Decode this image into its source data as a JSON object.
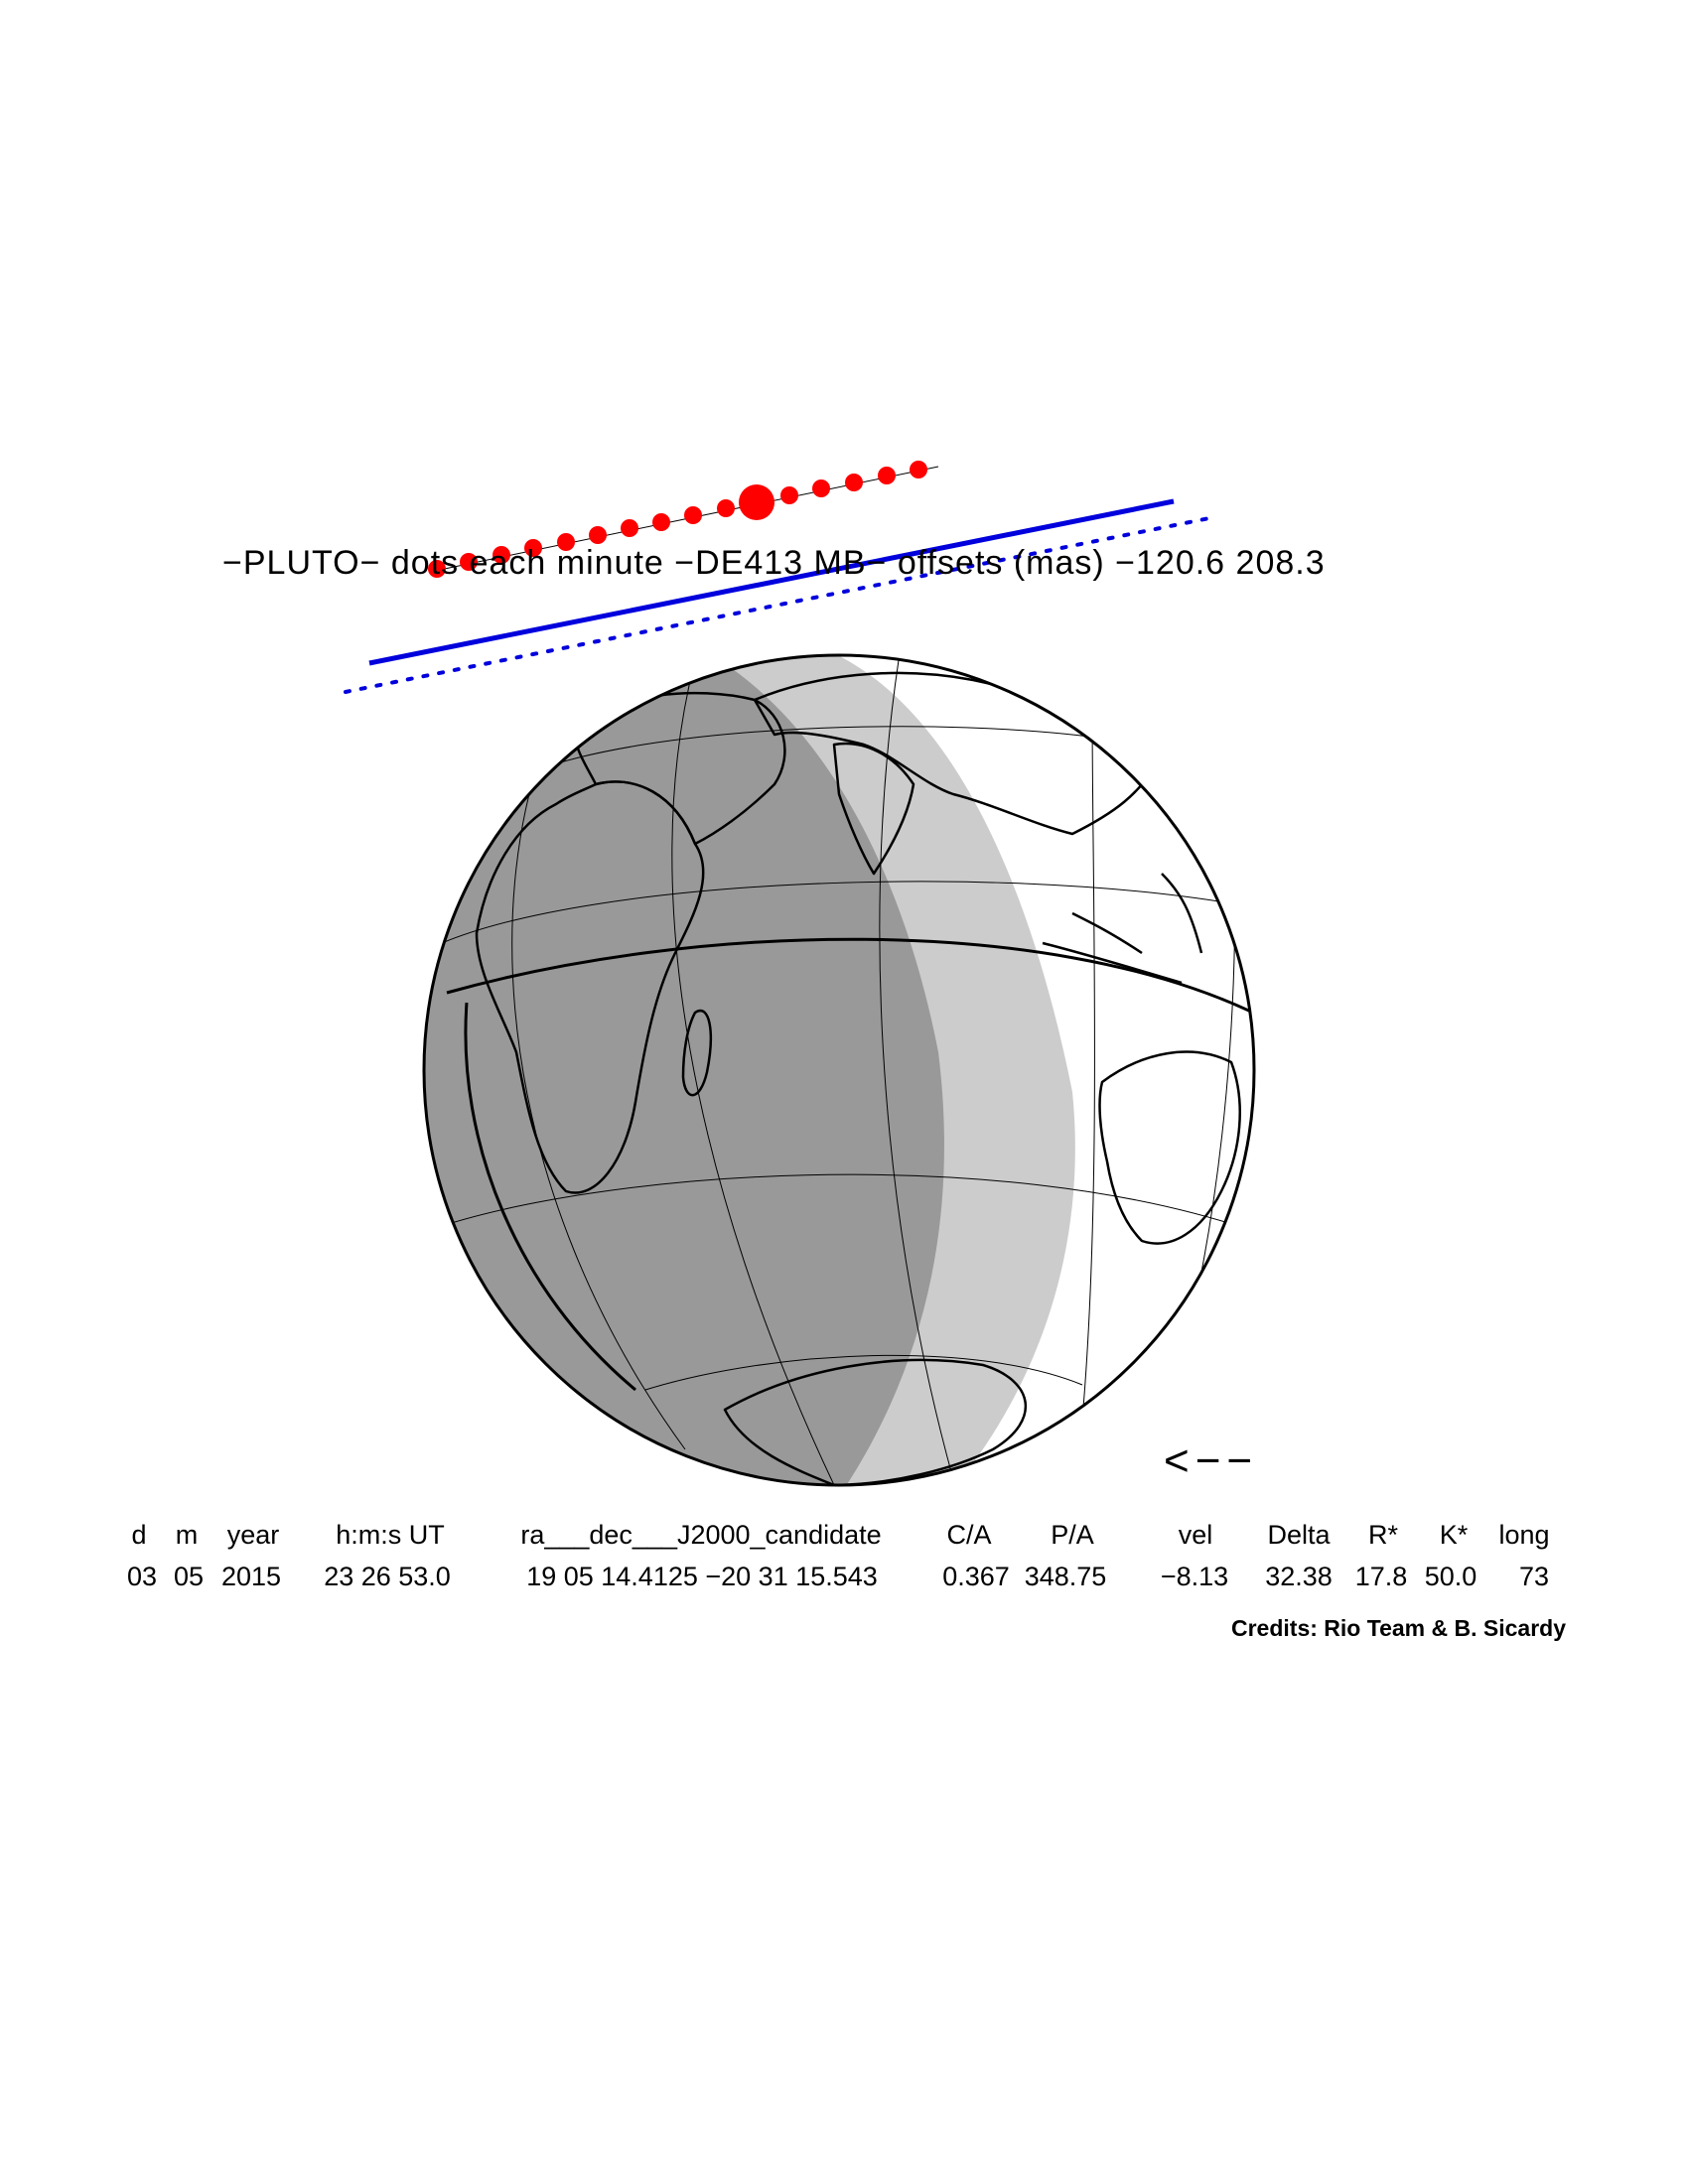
{
  "title": "−PLUTO−  dots each minute  −DE413 MB−  offsets (mas)  −120.6   208.3",
  "path": {
    "dots_label": "dots each minute",
    "dot_color": "#ff0000",
    "line_color": "#0000dd"
  },
  "map": {
    "night_color": "#999999",
    "twilight_color": "#cccccc",
    "day_color": "#ffffff",
    "direction_arrow": "<−−"
  },
  "table": {
    "headers": [
      "d",
      "m",
      "year",
      "h:m:s UT",
      "ra___dec___J2000_candidate",
      "C/A",
      "P/A",
      "vel",
      "Delta",
      "R*",
      "K*",
      "long"
    ],
    "values": [
      "03",
      "05",
      "2015",
      "23 26 53.0",
      "19 05 14.4125 −20 31 15.543",
      "0.367",
      "348.75",
      "−8.13",
      "32.38",
      "17.8",
      "50.0",
      "73"
    ]
  },
  "credits": "Credits: Rio Team & B. Sicardy"
}
